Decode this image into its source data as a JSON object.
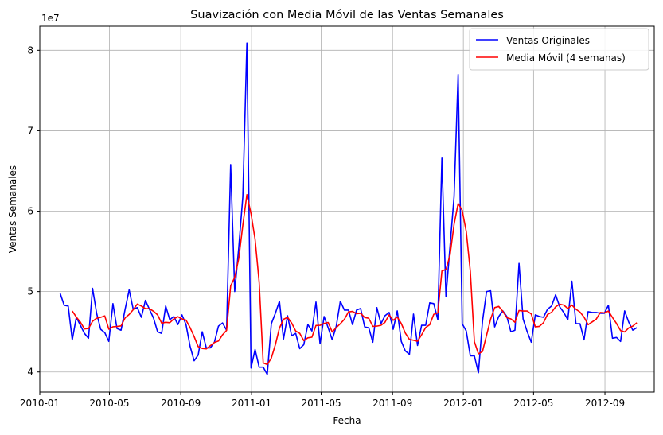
{
  "chart_data": {
    "type": "line",
    "title": "Suavización con Media Móvil de las Ventas Semanales",
    "xlabel": "Fecha",
    "ylabel": "Ventas Semanales",
    "y_multiplier_label": "1e7",
    "x_range": [
      "2010-01-01",
      "2012-11-25"
    ],
    "ylim": [
      37500000,
      83000000
    ],
    "x_ticks": [
      "2010-01",
      "2010-05",
      "2010-09",
      "2011-01",
      "2011-05",
      "2011-09",
      "2012-01",
      "2012-05",
      "2012-09"
    ],
    "y_ticks": [
      4,
      5,
      6,
      7,
      8
    ],
    "grid": true,
    "legend_position": "top-right",
    "series": [
      {
        "name": "Ventas Originales",
        "color": "#0000ff",
        "x": [
          "2010-02-05",
          "2010-02-12",
          "2010-02-19",
          "2010-02-26",
          "2010-03-05",
          "2010-03-12",
          "2010-03-19",
          "2010-03-26",
          "2010-04-02",
          "2010-04-09",
          "2010-04-16",
          "2010-04-23",
          "2010-04-30",
          "2010-05-07",
          "2010-05-14",
          "2010-05-21",
          "2010-05-28",
          "2010-06-04",
          "2010-06-11",
          "2010-06-18",
          "2010-06-25",
          "2010-07-02",
          "2010-07-09",
          "2010-07-16",
          "2010-07-23",
          "2010-07-30",
          "2010-08-06",
          "2010-08-13",
          "2010-08-20",
          "2010-08-27",
          "2010-09-03",
          "2010-09-10",
          "2010-09-17",
          "2010-09-24",
          "2010-10-01",
          "2010-10-08",
          "2010-10-15",
          "2010-10-22",
          "2010-10-29",
          "2010-11-05",
          "2010-11-12",
          "2010-11-19",
          "2010-11-26",
          "2010-12-03",
          "2010-12-10",
          "2010-12-17",
          "2010-12-24",
          "2010-12-31",
          "2011-01-07",
          "2011-01-14",
          "2011-01-21",
          "2011-01-28",
          "2011-02-04",
          "2011-02-11",
          "2011-02-18",
          "2011-02-25",
          "2011-03-04",
          "2011-03-11",
          "2011-03-18",
          "2011-03-25",
          "2011-04-01",
          "2011-04-08",
          "2011-04-15",
          "2011-04-22",
          "2011-04-29",
          "2011-05-06",
          "2011-05-13",
          "2011-05-20",
          "2011-05-27",
          "2011-06-03",
          "2011-06-10",
          "2011-06-17",
          "2011-06-24",
          "2011-07-01",
          "2011-07-08",
          "2011-07-15",
          "2011-07-22",
          "2011-07-29",
          "2011-08-05",
          "2011-08-12",
          "2011-08-19",
          "2011-08-26",
          "2011-09-02",
          "2011-09-09",
          "2011-09-16",
          "2011-09-23",
          "2011-09-30",
          "2011-10-07",
          "2011-10-14",
          "2011-10-21",
          "2011-10-28",
          "2011-11-04",
          "2011-11-11",
          "2011-11-18",
          "2011-11-25",
          "2011-12-02",
          "2011-12-09",
          "2011-12-16",
          "2011-12-23",
          "2011-12-30",
          "2012-01-06",
          "2012-01-13",
          "2012-01-20",
          "2012-01-27",
          "2012-02-03",
          "2012-02-10",
          "2012-02-17",
          "2012-02-24",
          "2012-03-02",
          "2012-03-09",
          "2012-03-16",
          "2012-03-23",
          "2012-03-30",
          "2012-04-06",
          "2012-04-13",
          "2012-04-20",
          "2012-04-27",
          "2012-05-04",
          "2012-05-11",
          "2012-05-18",
          "2012-05-25",
          "2012-06-01",
          "2012-06-08",
          "2012-06-15",
          "2012-06-22",
          "2012-06-29",
          "2012-07-06",
          "2012-07-13",
          "2012-07-20",
          "2012-07-27",
          "2012-08-03",
          "2012-08-10",
          "2012-08-17",
          "2012-08-24",
          "2012-08-31",
          "2012-09-07",
          "2012-09-14",
          "2012-09-21",
          "2012-09-28",
          "2012-10-05",
          "2012-10-12",
          "2012-10-19",
          "2012-10-26"
        ],
        "values": [
          49800000,
          48300000,
          48200000,
          44000000,
          46800000,
          45800000,
          44800000,
          44200000,
          50400000,
          47300000,
          45300000,
          44900000,
          43800000,
          48500000,
          45400000,
          45200000,
          47800000,
          50200000,
          47800000,
          48000000,
          46800000,
          48900000,
          47800000,
          46700000,
          45000000,
          44800000,
          48200000,
          46500000,
          46900000,
          45900000,
          47100000,
          45900000,
          43200000,
          41400000,
          42100000,
          45000000,
          43000000,
          43000000,
          43700000,
          45700000,
          46100000,
          45200000,
          65800000,
          50000000,
          55500000,
          61800000,
          80900000,
          40500000,
          42800000,
          40600000,
          40600000,
          39700000,
          46000000,
          47300000,
          48800000,
          44100000,
          47000000,
          44500000,
          44800000,
          42900000,
          43400000,
          45900000,
          45100000,
          48700000,
          43500000,
          46900000,
          45500000,
          44000000,
          45700000,
          48800000,
          47700000,
          47700000,
          45900000,
          47700000,
          47900000,
          45600000,
          45500000,
          43700000,
          48000000,
          46000000,
          47000000,
          47400000,
          45300000,
          47600000,
          43800000,
          42600000,
          42200000,
          47200000,
          43300000,
          45800000,
          45800000,
          48600000,
          48500000,
          46500000,
          66600000,
          49400000,
          55600000,
          61800000,
          77000000,
          46000000,
          45100000,
          42000000,
          42000000,
          39900000,
          46300000,
          50000000,
          50100000,
          45600000,
          46900000,
          47600000,
          46900000,
          45000000,
          45200000,
          53500000,
          46600000,
          45000000,
          43700000,
          47100000,
          46900000,
          46800000,
          47800000,
          48200000,
          49600000,
          48100000,
          47400000,
          46500000,
          51300000,
          46000000,
          46000000,
          44000000,
          47500000,
          47400000,
          47400000,
          47300000,
          47300000,
          48300000,
          44200000,
          44300000,
          43800000,
          47600000,
          46200000,
          45200000,
          45500000
        ]
      },
      {
        "name": "Media Móvil (4 semanas)",
        "color": "#ff0000",
        "window": 4
      }
    ]
  }
}
